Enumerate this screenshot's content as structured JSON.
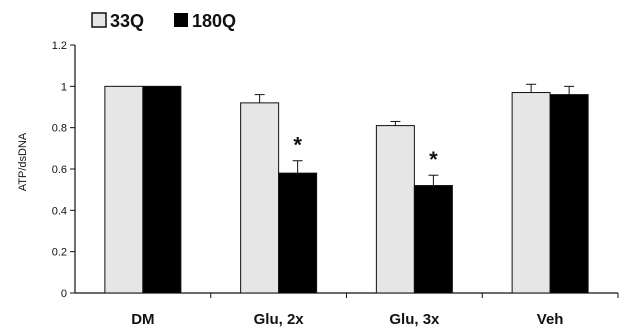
{
  "chart_data": {
    "type": "bar",
    "title": "",
    "xlabel": "",
    "ylabel": "ATP/dsDNA",
    "ylim": [
      0,
      1.2
    ],
    "yticks": [
      "0",
      "0.2",
      "0.4",
      "0.6",
      "0.8",
      "1",
      "1.2"
    ],
    "categories": [
      "DM",
      "Glu, 2x",
      "Glu, 3x",
      "Veh"
    ],
    "series": [
      {
        "name": "33Q",
        "values": [
          1.0,
          0.92,
          0.81,
          0.97
        ],
        "errors": [
          0.0,
          0.04,
          0.02,
          0.04
        ],
        "color": "#e6e6e6"
      },
      {
        "name": "180Q",
        "values": [
          1.0,
          0.58,
          0.52,
          0.96
        ],
        "errors": [
          0.0,
          0.06,
          0.05,
          0.04
        ],
        "color": "#000000"
      }
    ],
    "legend_position": "top-left",
    "grid": false,
    "annotations": [
      {
        "text": "*",
        "category": "Glu, 2x",
        "series": "180Q"
      },
      {
        "text": "*",
        "category": "Glu, 3x",
        "series": "180Q"
      }
    ]
  }
}
